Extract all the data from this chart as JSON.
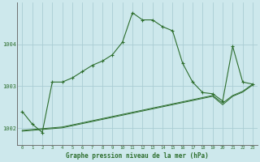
{
  "title": "Graphe pression niveau de la mer (hPa)",
  "background_color": "#cde8ec",
  "grid_color": "#aacdd4",
  "line_color": "#2d6e2d",
  "x_ticks": [
    0,
    1,
    2,
    3,
    4,
    5,
    6,
    7,
    8,
    9,
    10,
    11,
    12,
    13,
    14,
    15,
    16,
    17,
    18,
    19,
    20,
    21,
    22,
    23
  ],
  "y_ticks": [
    1002,
    1003,
    1004
  ],
  "ylim": [
    1001.6,
    1005.0
  ],
  "xlim": [
    -0.5,
    23.5
  ],
  "series1_x": [
    0,
    1,
    2,
    3,
    4,
    5,
    6,
    7,
    8,
    9,
    10,
    11,
    12,
    13,
    14,
    15,
    16,
    17,
    18,
    19,
    20,
    21,
    22,
    23
  ],
  "series1_y": [
    1002.4,
    1002.1,
    1001.9,
    1003.1,
    1003.1,
    1003.2,
    1003.35,
    1003.5,
    1003.6,
    1003.75,
    1004.05,
    1004.75,
    1004.58,
    1004.58,
    1004.42,
    1004.32,
    1003.55,
    1003.1,
    1002.85,
    1002.82,
    1002.65,
    1003.95,
    1003.1,
    1003.05
  ],
  "series2_x": [
    0,
    1,
    2,
    3,
    4,
    5,
    6,
    7,
    8,
    9,
    10,
    11,
    12,
    13,
    14,
    15,
    16,
    17,
    18,
    19,
    20,
    21,
    22,
    23
  ],
  "series2_y": [
    1001.95,
    1001.97,
    1001.99,
    1002.01,
    1002.03,
    1002.08,
    1002.13,
    1002.18,
    1002.23,
    1002.28,
    1002.33,
    1002.38,
    1002.43,
    1002.48,
    1002.53,
    1002.58,
    1002.63,
    1002.68,
    1002.73,
    1002.78,
    1002.6,
    1002.78,
    1002.88,
    1003.05
  ],
  "series3_x": [
    0,
    1,
    2,
    3,
    4,
    5,
    6,
    7,
    8,
    9,
    10,
    11,
    12,
    13,
    14,
    15,
    16,
    17,
    18,
    19,
    20,
    21,
    22,
    23
  ],
  "series3_y": [
    1001.93,
    1001.95,
    1001.97,
    1001.99,
    1002.01,
    1002.06,
    1002.11,
    1002.16,
    1002.21,
    1002.26,
    1002.31,
    1002.36,
    1002.41,
    1002.46,
    1002.51,
    1002.56,
    1002.61,
    1002.66,
    1002.71,
    1002.76,
    1002.56,
    1002.76,
    1002.86,
    1003.03
  ]
}
